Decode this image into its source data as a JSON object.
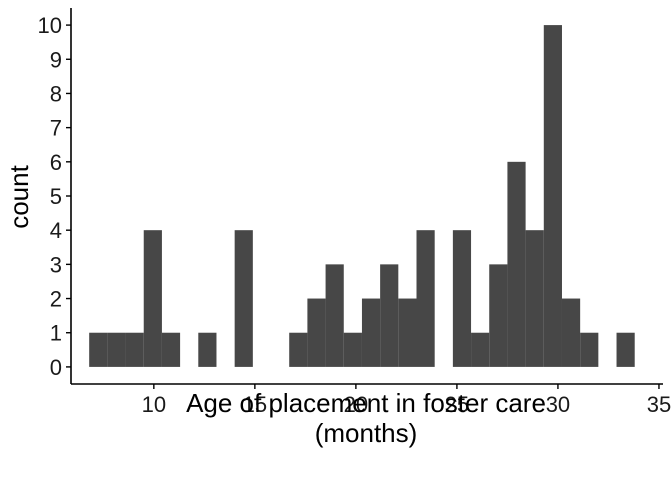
{
  "chart_data": {
    "type": "bar",
    "subtype": "histogram",
    "xlabel_line1": "Age of placement in foster care",
    "xlabel_line2": "(months)",
    "ylabel": "count",
    "xlim": [
      5.9,
      35.2
    ],
    "ylim": [
      -0.5,
      10.5
    ],
    "x_ticks": [
      10,
      15,
      20,
      25,
      30,
      35
    ],
    "y_ticks": [
      0,
      1,
      2,
      3,
      4,
      5,
      6,
      7,
      8,
      9,
      10
    ],
    "grid": false,
    "bar_color": "#474747",
    "bin_width": 0.9,
    "bins": [
      {
        "x0": 6.8,
        "count": 1
      },
      {
        "x0": 7.7,
        "count": 1
      },
      {
        "x0": 8.6,
        "count": 1
      },
      {
        "x0": 9.5,
        "count": 4
      },
      {
        "x0": 10.4,
        "count": 1
      },
      {
        "x0": 11.3,
        "count": 0
      },
      {
        "x0": 12.2,
        "count": 1
      },
      {
        "x0": 13.1,
        "count": 0
      },
      {
        "x0": 14.0,
        "count": 4
      },
      {
        "x0": 14.9,
        "count": 0
      },
      {
        "x0": 15.8,
        "count": 0
      },
      {
        "x0": 16.7,
        "count": 1
      },
      {
        "x0": 17.6,
        "count": 2
      },
      {
        "x0": 18.5,
        "count": 3
      },
      {
        "x0": 19.4,
        "count": 1
      },
      {
        "x0": 20.3,
        "count": 2
      },
      {
        "x0": 21.2,
        "count": 3
      },
      {
        "x0": 22.1,
        "count": 2
      },
      {
        "x0": 23.0,
        "count": 4
      },
      {
        "x0": 23.9,
        "count": 0
      },
      {
        "x0": 24.8,
        "count": 4
      },
      {
        "x0": 25.7,
        "count": 1
      },
      {
        "x0": 26.6,
        "count": 3
      },
      {
        "x0": 27.5,
        "count": 6
      },
      {
        "x0": 28.4,
        "count": 4
      },
      {
        "x0": 29.3,
        "count": 10
      },
      {
        "x0": 30.2,
        "count": 2
      },
      {
        "x0": 31.1,
        "count": 1
      },
      {
        "x0": 32.0,
        "count": 0
      },
      {
        "x0": 32.9,
        "count": 1
      }
    ]
  }
}
